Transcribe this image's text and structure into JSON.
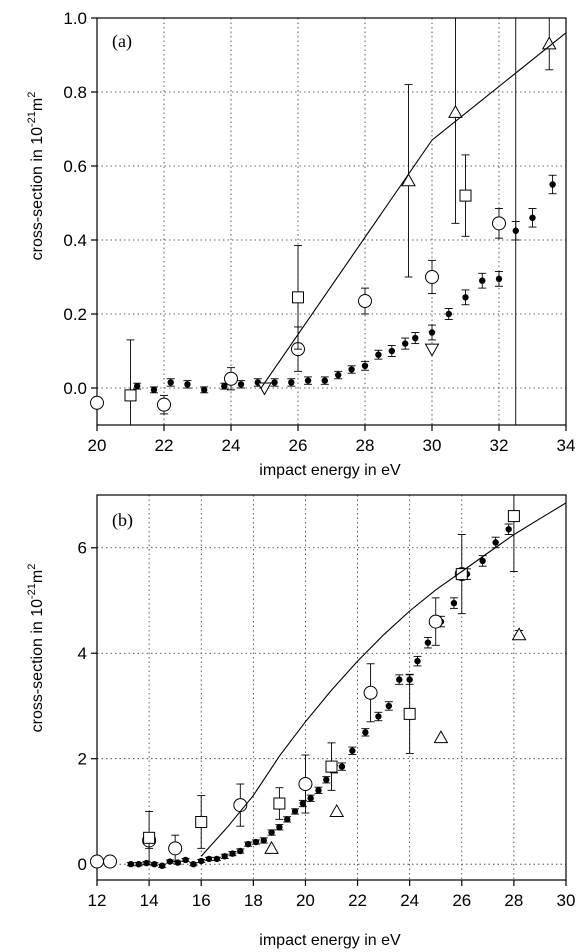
{
  "chart_data": [
    {
      "type": "scatter",
      "panel_label": "(a)",
      "xlabel": "impact energy in eV",
      "ylabel": "cross-section in 10",
      "ylabel_exp": "-21",
      "ylabel_unit": "m",
      "ylabel_exp2": "2",
      "xlim": [
        20,
        34
      ],
      "ylim": [
        -0.1,
        1.0
      ],
      "xticks": [
        20,
        22,
        24,
        26,
        28,
        30,
        32,
        34
      ],
      "xtick_labels": [
        "20",
        "22",
        "24",
        "26",
        "28",
        "30",
        "32",
        "34"
      ],
      "yticks": [
        0.0,
        0.2,
        0.4,
        0.6,
        0.8,
        1.0
      ],
      "ytick_labels": [
        "0.0",
        "0.2",
        "0.4",
        "0.6",
        "0.8",
        "1.0"
      ],
      "grid": true,
      "series": [
        {
          "marker": "filled-circle",
          "points": [
            [
              21.2,
              0.005
            ],
            [
              21.7,
              -0.005
            ],
            [
              22.2,
              0.015
            ],
            [
              22.7,
              0.01
            ],
            [
              23.2,
              -0.005
            ],
            [
              23.8,
              0.005
            ],
            [
              24.3,
              0.01
            ],
            [
              24.8,
              0.015
            ],
            [
              25.3,
              0.015
            ],
            [
              25.8,
              0.015
            ],
            [
              26.3,
              0.02
            ],
            [
              26.8,
              0.02
            ],
            [
              27.2,
              0.035
            ],
            [
              27.6,
              0.05
            ],
            [
              28.0,
              0.06
            ],
            [
              28.4,
              0.09
            ],
            [
              28.8,
              0.1
            ],
            [
              29.2,
              0.12
            ],
            [
              29.5,
              0.135
            ],
            [
              30.0,
              0.15
            ],
            [
              30.5,
              0.2
            ],
            [
              31.0,
              0.245
            ],
            [
              31.5,
              0.29
            ],
            [
              32.0,
              0.295
            ],
            [
              32.5,
              0.425
            ],
            [
              33.0,
              0.46
            ],
            [
              33.6,
              0.55
            ]
          ],
          "errors": [
            0.008,
            0.008,
            0.01,
            0.01,
            0.008,
            0.008,
            0.01,
            0.01,
            0.01,
            0.01,
            0.01,
            0.01,
            0.01,
            0.01,
            0.012,
            0.012,
            0.015,
            0.015,
            0.015,
            0.02,
            0.015,
            0.02,
            0.02,
            0.02,
            0.025,
            0.025,
            0.025
          ]
        },
        {
          "marker": "open-circle",
          "points": [
            [
              20.0,
              -0.04
            ],
            [
              22.0,
              -0.045
            ],
            [
              24.0,
              0.025
            ],
            [
              26.0,
              0.105
            ],
            [
              28.0,
              0.235
            ],
            [
              30.0,
              0.3
            ],
            [
              32.0,
              0.445
            ]
          ],
          "errors": [
            0.0,
            0.025,
            0.03,
            0.06,
            0.035,
            0.045,
            0.04
          ]
        },
        {
          "marker": "open-square",
          "points": [
            [
              21.0,
              -0.02
            ],
            [
              26.0,
              0.245
            ],
            [
              31.0,
              0.52
            ]
          ],
          "errors": [
            0.15,
            0.14,
            0.11
          ]
        },
        {
          "marker": "open-triangle-up",
          "points": [
            [
              29.3,
              0.56
            ],
            [
              30.7,
              0.745
            ],
            [
              33.5,
              0.93
            ]
          ],
          "errors": [
            0.26,
            0.3,
            0.07
          ]
        },
        {
          "marker": "open-triangle-down",
          "points": [
            [
              25.0,
              0.0
            ],
            [
              30.0,
              0.105
            ]
          ],
          "errors": [
            0.0,
            0.0
          ]
        },
        {
          "marker": "line",
          "points": [
            [
              24.9,
              0.0
            ],
            [
              30.0,
              0.67
            ],
            [
              34.0,
              0.96
            ]
          ]
        },
        {
          "marker": "tall-errorbar",
          "points": [
            [
              32.5,
              0.555
            ]
          ],
          "errors": [
            0.7
          ]
        }
      ]
    },
    {
      "type": "scatter",
      "panel_label": "(b)",
      "xlabel": "impact energy in eV",
      "ylabel": "cross-section in 10",
      "ylabel_exp": "-21",
      "ylabel_unit": "m",
      "ylabel_exp2": "2",
      "xlim": [
        12,
        30
      ],
      "ylim": [
        -0.3,
        7.0
      ],
      "xticks": [
        12,
        14,
        16,
        18,
        20,
        22,
        24,
        26,
        28,
        30
      ],
      "xtick_labels": [
        "12",
        "14",
        "16",
        "18",
        "20",
        "22",
        "24",
        "26",
        "28",
        "30"
      ],
      "yticks": [
        0,
        2,
        4,
        6
      ],
      "ytick_labels": [
        "0",
        "2",
        "4",
        "6"
      ],
      "grid": true,
      "series": [
        {
          "marker": "filled-circle",
          "points": [
            [
              13.3,
              0.0
            ],
            [
              13.6,
              0.0
            ],
            [
              13.9,
              0.02
            ],
            [
              14.2,
              0.0
            ],
            [
              14.5,
              -0.03
            ],
            [
              14.8,
              0.05
            ],
            [
              15.1,
              0.03
            ],
            [
              15.4,
              0.08
            ],
            [
              15.7,
              0.0
            ],
            [
              16.0,
              0.06
            ],
            [
              16.3,
              0.1
            ],
            [
              16.6,
              0.1
            ],
            [
              16.9,
              0.15
            ],
            [
              17.2,
              0.2
            ],
            [
              17.5,
              0.25
            ],
            [
              17.8,
              0.38
            ],
            [
              18.1,
              0.42
            ],
            [
              18.4,
              0.45
            ],
            [
              18.7,
              0.6
            ],
            [
              19.0,
              0.7
            ],
            [
              19.3,
              0.85
            ],
            [
              19.6,
              1.0
            ],
            [
              19.9,
              1.15
            ],
            [
              20.2,
              1.25
            ],
            [
              20.5,
              1.4
            ],
            [
              20.8,
              1.6
            ],
            [
              21.1,
              1.8
            ],
            [
              21.4,
              1.85
            ],
            [
              21.8,
              2.15
            ],
            [
              22.3,
              2.5
            ],
            [
              22.8,
              2.8
            ],
            [
              23.2,
              3.0
            ],
            [
              23.6,
              3.5
            ],
            [
              24.0,
              3.5
            ],
            [
              24.3,
              3.85
            ],
            [
              24.7,
              4.2
            ],
            [
              25.2,
              4.6
            ],
            [
              25.7,
              4.95
            ],
            [
              26.2,
              5.5
            ],
            [
              26.8,
              5.75
            ],
            [
              27.3,
              6.1
            ],
            [
              27.8,
              6.35
            ]
          ],
          "errors": [
            0.03,
            0.03,
            0.03,
            0.03,
            0.03,
            0.03,
            0.03,
            0.03,
            0.03,
            0.03,
            0.03,
            0.03,
            0.04,
            0.04,
            0.04,
            0.04,
            0.04,
            0.05,
            0.05,
            0.05,
            0.05,
            0.05,
            0.06,
            0.06,
            0.06,
            0.06,
            0.07,
            0.07,
            0.07,
            0.07,
            0.08,
            0.08,
            0.09,
            0.09,
            0.09,
            0.1,
            0.1,
            0.1,
            0.1,
            0.1,
            0.1,
            0.1
          ]
        },
        {
          "marker": "open-circle",
          "points": [
            [
              12.0,
              0.05
            ],
            [
              12.5,
              0.05
            ],
            [
              14.0,
              0.45
            ],
            [
              15.0,
              0.3
            ],
            [
              17.5,
              1.12
            ],
            [
              20.0,
              1.52
            ],
            [
              22.5,
              3.25
            ],
            [
              25.0,
              4.6
            ],
            [
              26.0,
              5.5
            ]
          ],
          "errors": [
            0.0,
            0.0,
            0.15,
            0.25,
            0.4,
            0.55,
            0.55,
            0.45,
            0.0
          ]
        },
        {
          "marker": "open-square",
          "points": [
            [
              14.0,
              0.5
            ],
            [
              16.0,
              0.8
            ],
            [
              19.0,
              1.15
            ],
            [
              21.0,
              1.85
            ],
            [
              24.0,
              2.85
            ],
            [
              26.0,
              5.5
            ],
            [
              28.0,
              6.6
            ]
          ],
          "errors": [
            0.5,
            0.5,
            0.3,
            0.45,
            0.75,
            0.75,
            1.05
          ]
        },
        {
          "marker": "open-triangle-up",
          "points": [
            [
              18.7,
              0.3
            ],
            [
              21.2,
              1.0
            ],
            [
              25.2,
              2.4
            ],
            [
              28.2,
              4.35
            ]
          ],
          "errors": [
            0.0,
            0.0,
            0.0,
            0.08
          ]
        },
        {
          "marker": "line",
          "points": [
            [
              16.0,
              0.15
            ],
            [
              17.0,
              0.7
            ],
            [
              18.0,
              1.3
            ],
            [
              19.0,
              2.05
            ],
            [
              20.0,
              2.7
            ],
            [
              21.0,
              3.3
            ],
            [
              22.0,
              3.85
            ],
            [
              23.0,
              4.35
            ],
            [
              24.0,
              4.8
            ],
            [
              25.0,
              5.2
            ],
            [
              26.0,
              5.55
            ],
            [
              27.0,
              5.9
            ],
            [
              28.0,
              6.25
            ],
            [
              29.0,
              6.55
            ],
            [
              30.0,
              6.85
            ]
          ]
        }
      ]
    }
  ]
}
